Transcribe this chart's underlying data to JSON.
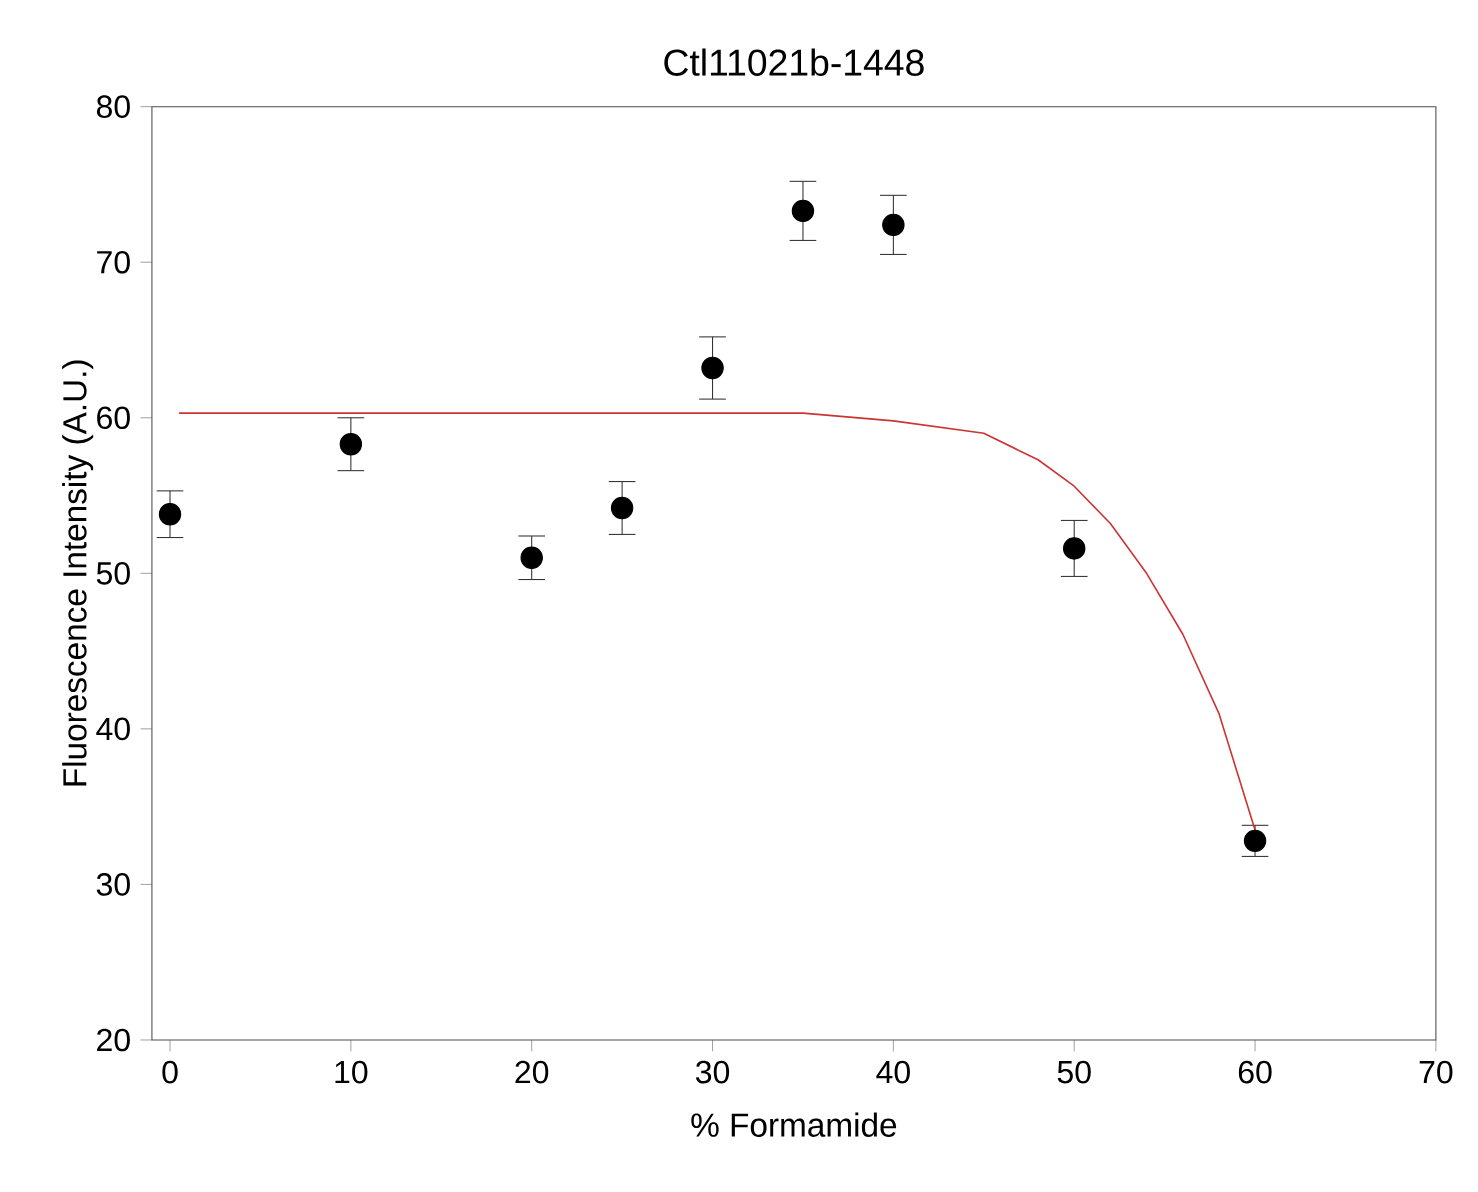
{
  "chart_data": {
    "type": "scatter",
    "title": "Ctl11021b-1448",
    "xlabel": "% Formamide",
    "ylabel": "Fluorescence Intensity (A.U.)",
    "xlim": [
      -1,
      70
    ],
    "ylim": [
      20,
      80
    ],
    "xticks": [
      0,
      10,
      20,
      30,
      40,
      50,
      60,
      70
    ],
    "yticks": [
      20,
      30,
      40,
      50,
      60,
      70,
      80
    ],
    "grid": false,
    "series": [
      {
        "type": "line",
        "color": "#cc3333",
        "marker": "none",
        "x": [
          0.5,
          10,
          20,
          30,
          35,
          40,
          45,
          48,
          50,
          52,
          54,
          56,
          58,
          60
        ],
        "values": [
          60.3,
          60.3,
          60.3,
          60.3,
          60.3,
          59.8,
          59.0,
          57.3,
          55.6,
          53.2,
          50.0,
          46.1,
          41.0,
          33.5
        ]
      },
      {
        "color": "#000000",
        "marker": "circle",
        "x": [
          0,
          10,
          20,
          25,
          30,
          35,
          40,
          50,
          60
        ],
        "values": [
          53.8,
          58.3,
          51.0,
          54.2,
          63.2,
          73.3,
          72.4,
          51.6,
          32.8
        ],
        "errors": [
          1.5,
          1.7,
          1.4,
          1.7,
          2.0,
          1.9,
          1.9,
          1.8,
          1.0
        ]
      }
    ]
  }
}
